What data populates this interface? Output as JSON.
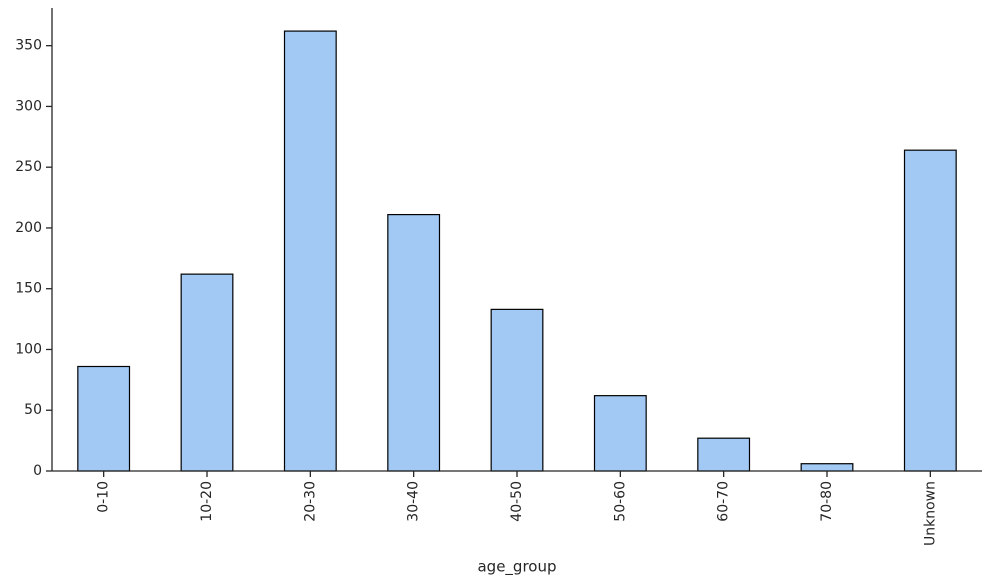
{
  "chart_data": {
    "type": "bar",
    "xlabel": "age_group",
    "categories": [
      "0-10",
      "10-20",
      "20-30",
      "30-40",
      "40-50",
      "50-60",
      "60-70",
      "70-80",
      "Unknown"
    ],
    "values": [
      86,
      162,
      362,
      211,
      133,
      62,
      27,
      6,
      264
    ],
    "color": "#a1c9f4",
    "ylim": [
      0,
      381
    ],
    "yticks": [
      0,
      50,
      100,
      150,
      200,
      250,
      300,
      350
    ],
    "grid": false
  }
}
